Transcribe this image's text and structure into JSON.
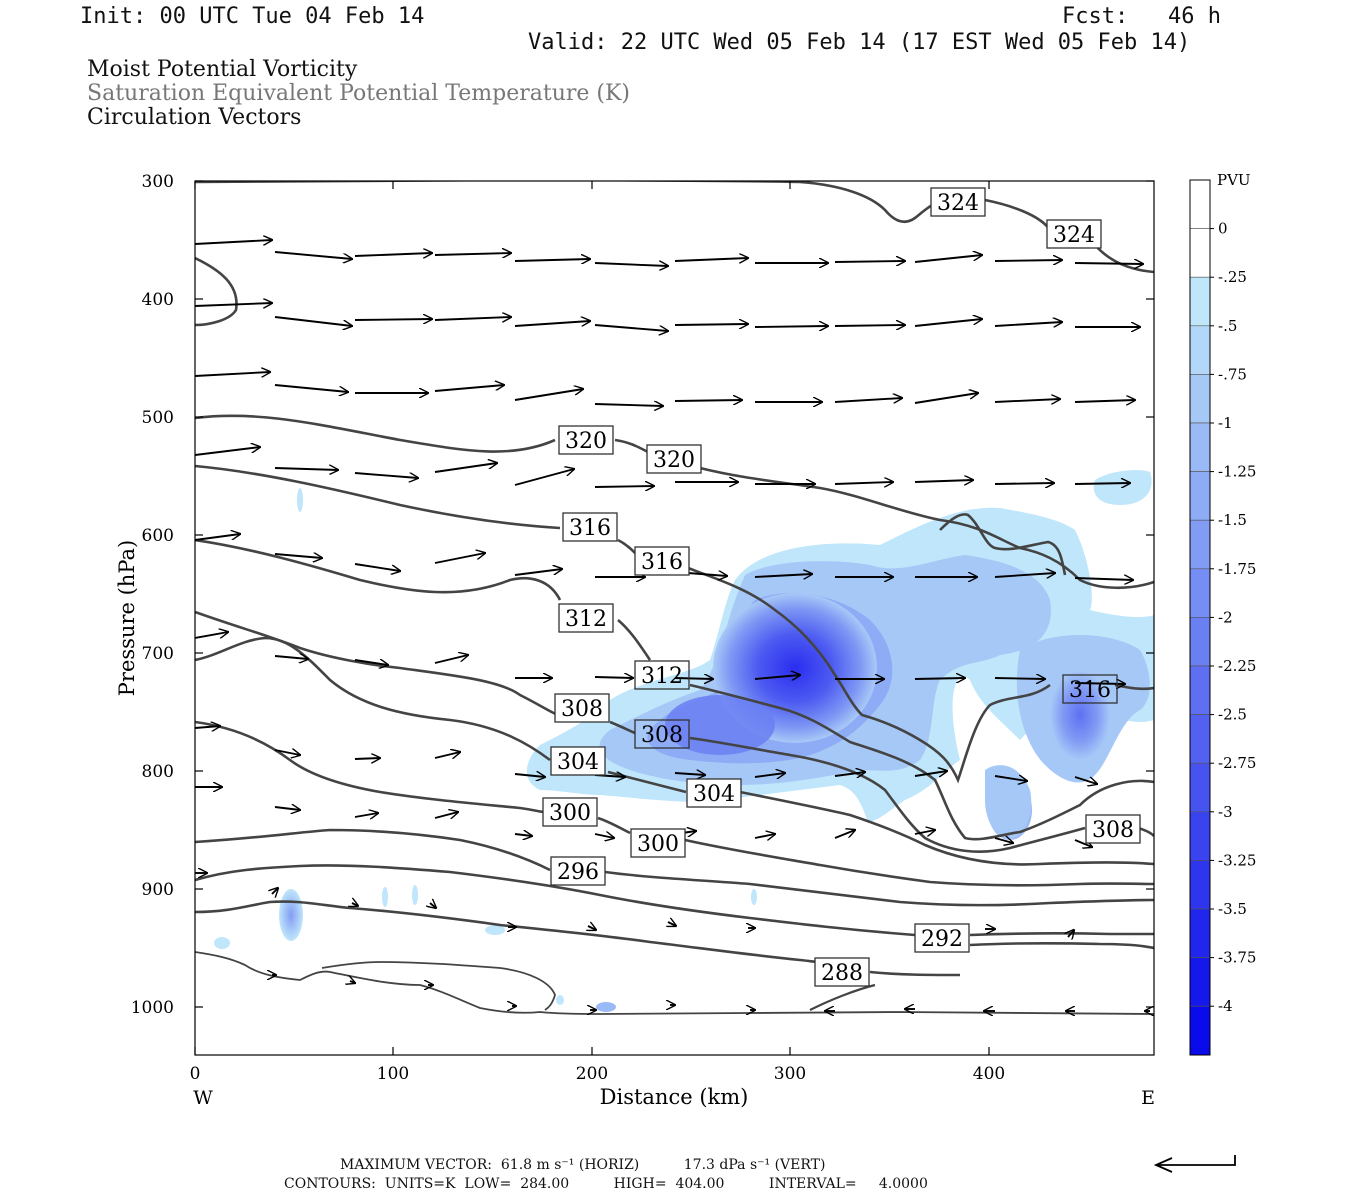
{
  "header": {
    "init": "Init: 00 UTC Tue 04 Feb 14",
    "fcst": "Fcst:   46 h",
    "valid": "Valid: 22 UTC Wed 05 Feb 14 (17 EST Wed 05 Feb 14)"
  },
  "titles": {
    "line1": "Moist Potential Vorticity",
    "line2": "Saturation Equivalent Potential Temperature (K)",
    "line3": "Circulation Vectors"
  },
  "chart_data": {
    "type": "heatmap",
    "xlabel": "Distance (km)",
    "ylabel": "Pressure (hPa)",
    "xlim": [
      0,
      484
    ],
    "ylim": [
      1040,
      300
    ],
    "x_ticks": [
      "0",
      "100",
      "200",
      "300",
      "400"
    ],
    "y_ticks": [
      "300",
      "400",
      "500",
      "600",
      "700",
      "800",
      "900",
      "1000"
    ],
    "x_end_labels": {
      "west": "W",
      "east": "E"
    },
    "colorbar": {
      "title": "PVU",
      "labels": [
        "0",
        "-.25",
        "-.5",
        "-.75",
        "-1",
        "-1.25",
        "-1.5",
        "-1.75",
        "-2",
        "-2.25",
        "-2.5",
        "-2.75",
        "-3",
        "-3.25",
        "-3.5",
        "-3.75",
        "-4"
      ],
      "colors": [
        "#ffffff",
        "#ffffff",
        "#bfe6fb",
        "#b2d7f9",
        "#a6c8f7",
        "#9ab9f6",
        "#8eabf5",
        "#829cf4",
        "#768df3",
        "#6a7ff2",
        "#5e70f1",
        "#5261f0",
        "#4653ef",
        "#3a44ee",
        "#2e35ed",
        "#2226ec",
        "#1618eb",
        "#0a0aea"
      ]
    },
    "contour_labels": [
      {
        "text": "324",
        "x": 373,
        "y": 320
      },
      {
        "text": "324",
        "x": 432,
        "y": 347
      },
      {
        "text": "320",
        "x": 197,
        "y": 520
      },
      {
        "text": "320",
        "x": 241,
        "y": 537
      },
      {
        "text": "316",
        "x": 200,
        "y": 596
      },
      {
        "text": "316",
        "x": 237,
        "y": 624
      },
      {
        "text": "312",
        "x": 197,
        "y": 671
      },
      {
        "text": "312",
        "x": 236,
        "y": 719
      },
      {
        "text": "316",
        "x": 453,
        "y": 731
      },
      {
        "text": "308",
        "x": 195,
        "y": 746
      },
      {
        "text": "308",
        "x": 236,
        "y": 768
      },
      {
        "text": "304",
        "x": 193,
        "y": 793
      },
      {
        "text": "304",
        "x": 261,
        "y": 819
      },
      {
        "text": "300",
        "x": 189,
        "y": 836
      },
      {
        "text": "300",
        "x": 233,
        "y": 863
      },
      {
        "text": "296",
        "x": 192,
        "y": 887
      },
      {
        "text": "308",
        "x": 461,
        "y": 849
      },
      {
        "text": "292",
        "x": 375,
        "y": 937
      },
      {
        "text": "288",
        "x": 325,
        "y": 974
      }
    ],
    "pv_features": [
      {
        "name": "main negative MPV core",
        "x": 305,
        "y": 710,
        "min_pvu": -3.25
      },
      {
        "name": "eastern negative MPV cell",
        "x": 446,
        "y": 750,
        "min_pvu": -2.5
      },
      {
        "name": "low-level negative MPV cell",
        "x": 48,
        "y": 925,
        "min_pvu": -1.5
      }
    ],
    "footer": {
      "max_vector": "MAXIMUM VECTOR:  61.8 m s⁻¹ (HORIZ)          17.3 dPa s⁻¹ (VERT)",
      "contours": "CONTOURS:  UNITS=K  LOW=  284.00          HIGH=  404.00          INTERVAL=     4.0000"
    }
  }
}
